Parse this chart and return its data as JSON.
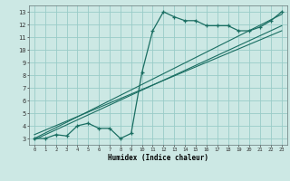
{
  "xlabel": "Humidex (Indice chaleur)",
  "bg_color": "#cce8e4",
  "grid_color": "#99ccc8",
  "line_color": "#1a6e62",
  "xlim": [
    -0.5,
    23.5
  ],
  "ylim": [
    2.5,
    13.5
  ],
  "xticks": [
    0,
    1,
    2,
    3,
    4,
    5,
    6,
    7,
    8,
    9,
    10,
    11,
    12,
    13,
    14,
    15,
    16,
    17,
    18,
    19,
    20,
    21,
    22,
    23
  ],
  "yticks": [
    3,
    4,
    5,
    6,
    7,
    8,
    9,
    10,
    11,
    12,
    13
  ],
  "scatter_x": [
    0,
    1,
    2,
    3,
    4,
    5,
    6,
    7,
    8,
    9,
    10,
    11,
    12,
    13,
    14,
    15,
    16,
    17,
    18,
    19,
    20,
    21,
    22,
    23
  ],
  "scatter_y": [
    3.0,
    3.0,
    3.3,
    3.2,
    4.0,
    4.2,
    3.8,
    3.8,
    3.0,
    3.4,
    8.2,
    11.5,
    13.0,
    12.6,
    12.3,
    12.3,
    11.9,
    11.9,
    11.9,
    11.5,
    11.5,
    11.8,
    12.3,
    13.0
  ],
  "line1_x": [
    0,
    23
  ],
  "line1_y": [
    3.0,
    12.8
  ],
  "line2_x": [
    0,
    23
  ],
  "line2_y": [
    2.9,
    11.9
  ],
  "line3_x": [
    0,
    23
  ],
  "line3_y": [
    3.3,
    11.5
  ]
}
